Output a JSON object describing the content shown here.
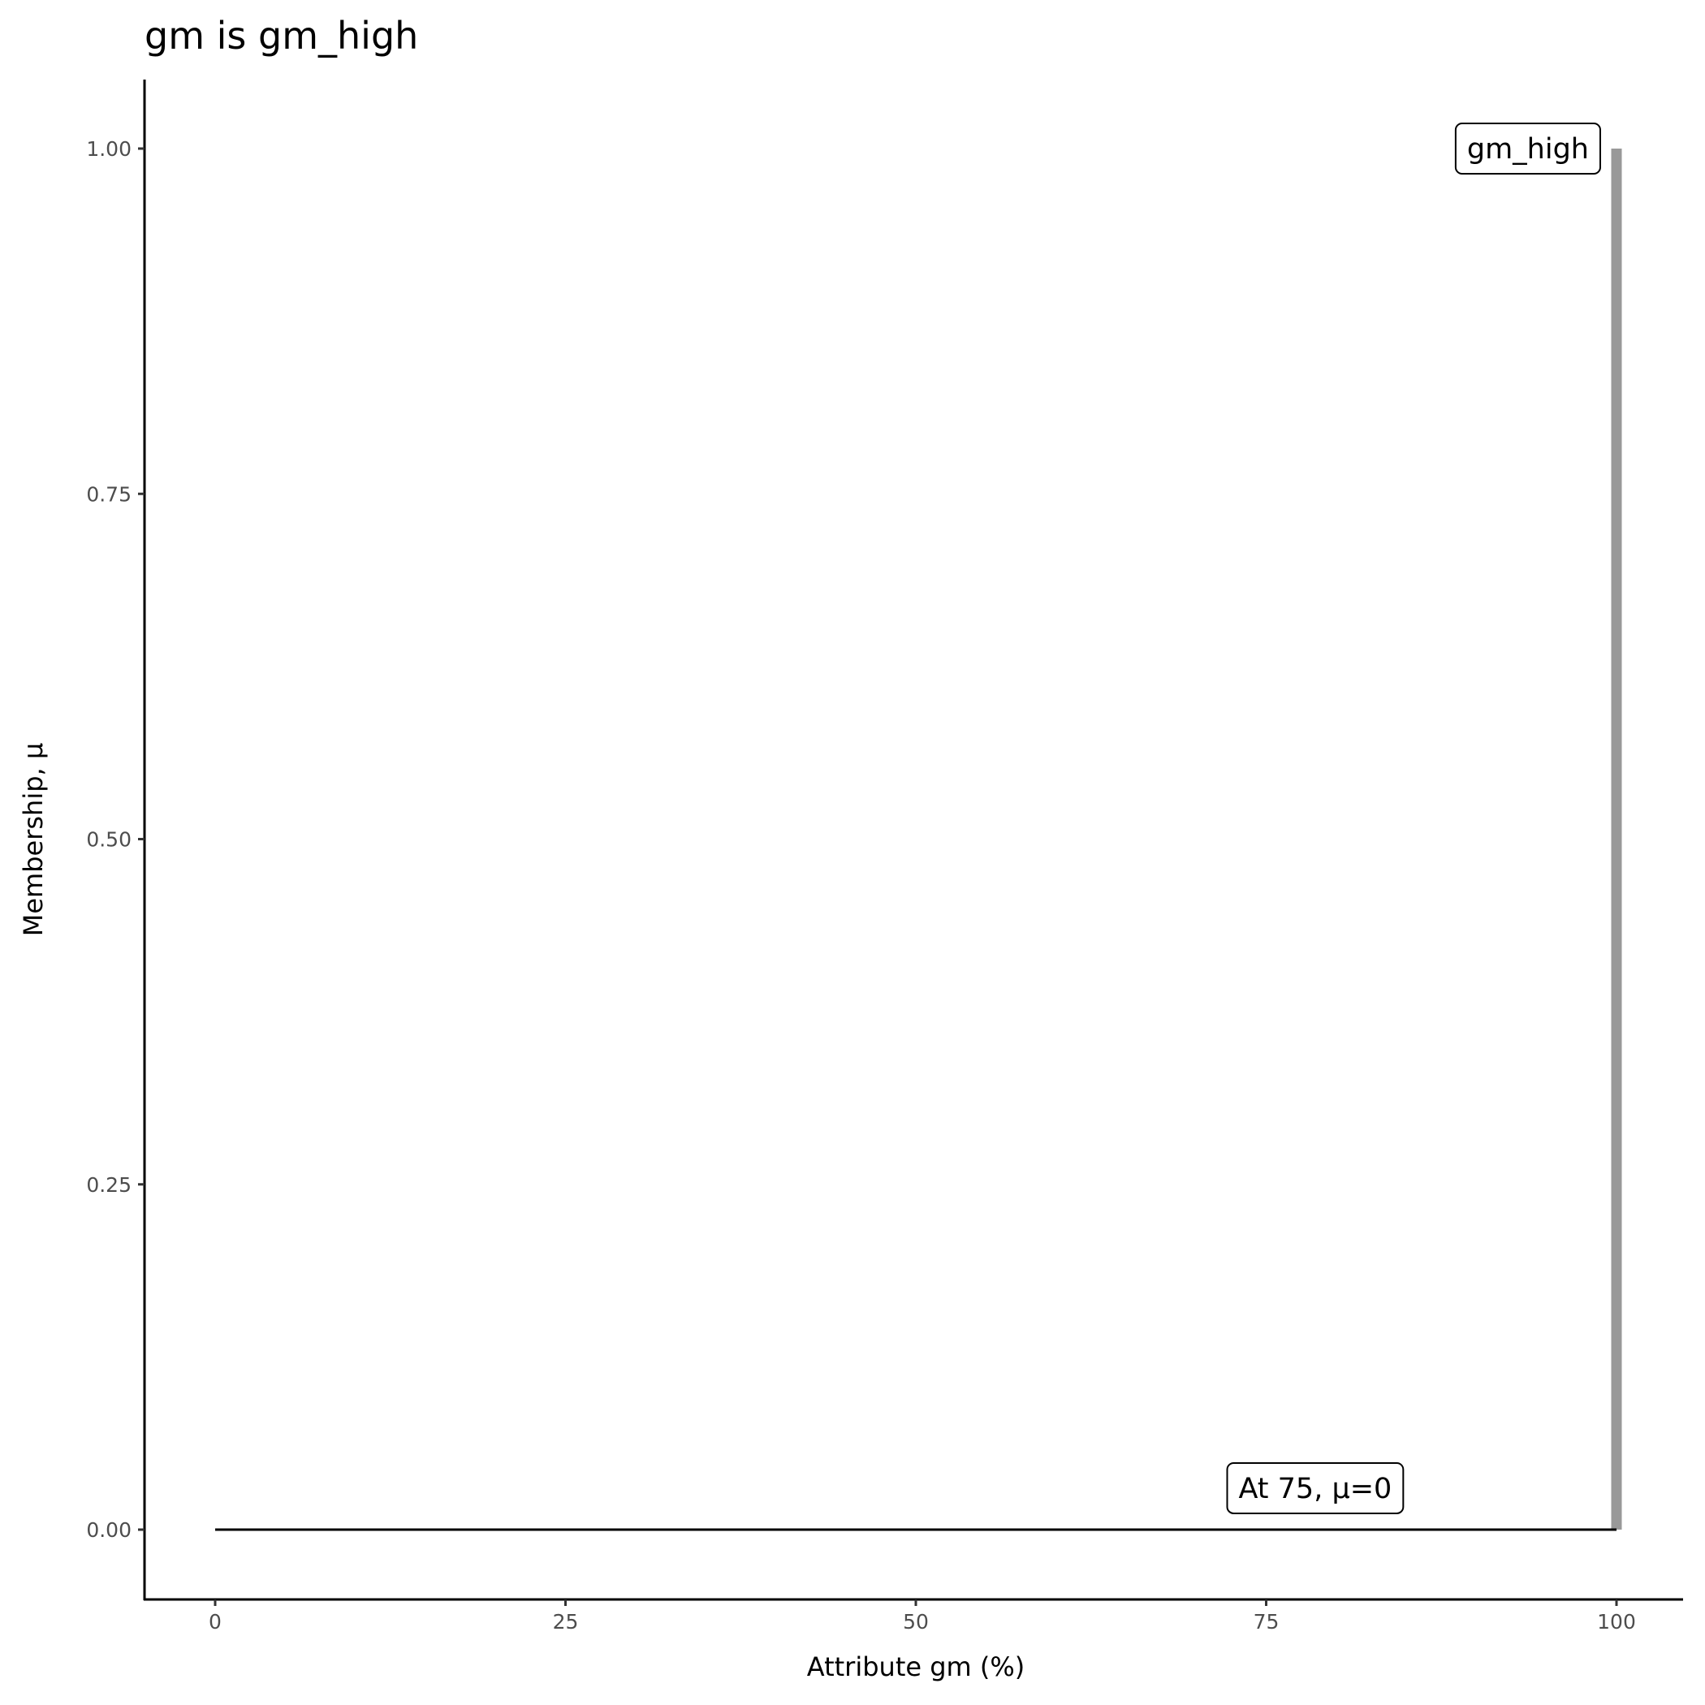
{
  "chart_data": {
    "type": "line",
    "title": "gm is gm_high",
    "xlabel": "Attribute gm (%)",
    "ylabel": "Membership, μ",
    "xlim": [
      -5,
      105
    ],
    "ylim": [
      -0.05,
      1.05
    ],
    "xticks": [
      "0",
      "25",
      "50",
      "75",
      "100"
    ],
    "yticks": [
      "0.00",
      "0.25",
      "0.50",
      "0.75",
      "1.00"
    ],
    "grid": false,
    "series": [
      {
        "color": "#000000",
        "points": [
          [
            0,
            0
          ],
          [
            100,
            0
          ]
        ]
      },
      {
        "color": "#999999",
        "points": [
          [
            100,
            0
          ],
          [
            100,
            1
          ]
        ]
      }
    ],
    "annotations": [
      {
        "text": "gm_high",
        "x": 100,
        "y": 1,
        "anchor": "right"
      },
      {
        "text": "At 75, μ=0",
        "x": 78.5,
        "y": 0.03
      }
    ]
  }
}
